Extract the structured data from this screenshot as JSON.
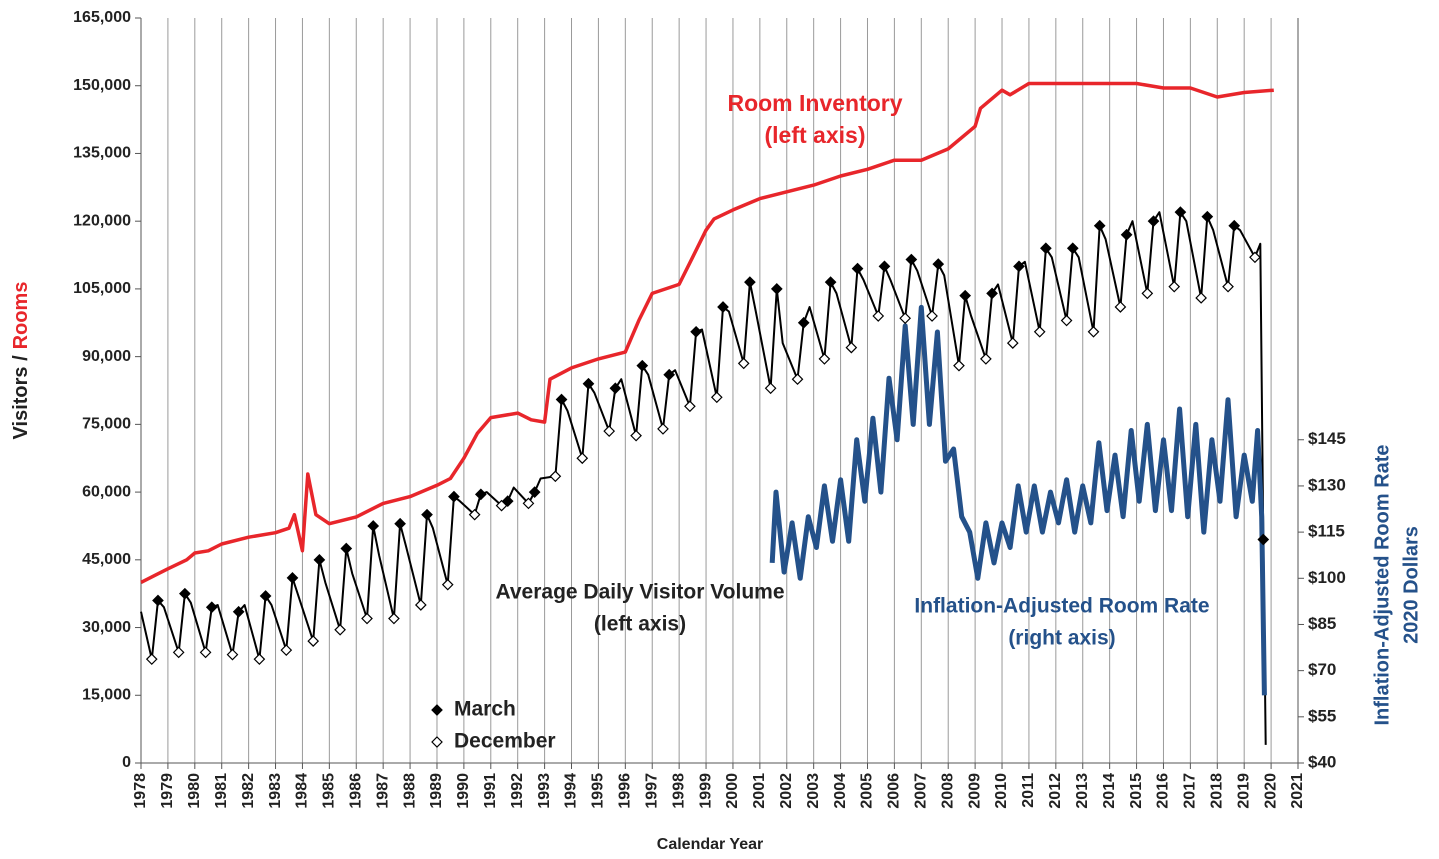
{
  "chart_data": {
    "type": "line",
    "x_label": "Calendar Year",
    "y_label_parts": [
      {
        "text": "Visitors /",
        "color": "#222222"
      },
      {
        "text": "Rooms",
        "color": "#e8262b"
      }
    ],
    "y2_label": [
      "Inflation-Adjusted Room Rate",
      "2020 Dollars"
    ],
    "y2_label_color": "#24518a",
    "annotations": [
      {
        "lines": [
          "Room Inventory",
          "(left axis)"
        ],
        "color": "#e8262b"
      },
      {
        "lines": [
          "Average Daily Visitor Volume",
          "(left axis)"
        ],
        "color": "#222222"
      },
      {
        "lines": [
          "Inflation-Adjusted Room Rate",
          "(right axis)"
        ],
        "color": "#24518a"
      }
    ],
    "xlim": [
      1978,
      2021
    ],
    "xticks": [
      1978,
      1979,
      1980,
      1981,
      1982,
      1983,
      1984,
      1985,
      1986,
      1987,
      1988,
      1989,
      1990,
      1991,
      1992,
      1993,
      1994,
      1995,
      1996,
      1997,
      1998,
      1999,
      2000,
      2001,
      2002,
      2003,
      2004,
      2005,
      2006,
      2007,
      2008,
      2009,
      2010,
      2011,
      2012,
      2013,
      2014,
      2015,
      2016,
      2017,
      2018,
      2019,
      2020,
      2021
    ],
    "ylim": [
      0,
      165000
    ],
    "yticks": [
      {
        "value": 0,
        "label": "0"
      },
      {
        "value": 15000,
        "label": "15,000"
      },
      {
        "value": 30000,
        "label": "30,000"
      },
      {
        "value": 45000,
        "label": "45,000"
      },
      {
        "value": 60000,
        "label": "60,000"
      },
      {
        "value": 75000,
        "label": "75,000"
      },
      {
        "value": 90000,
        "label": "90,000"
      },
      {
        "value": 105000,
        "label": "105,000"
      },
      {
        "value": 120000,
        "label": "120,000"
      },
      {
        "value": 135000,
        "label": "135,000"
      },
      {
        "value": 150000,
        "label": "150,000"
      },
      {
        "value": 165000,
        "label": "165,000"
      }
    ],
    "y2lim": [
      40,
      282
    ],
    "y2ticks": [
      {
        "value": 40,
        "label": "$40"
      },
      {
        "value": 55,
        "label": "$55"
      },
      {
        "value": 70,
        "label": "$70"
      },
      {
        "value": 85,
        "label": "$85"
      },
      {
        "value": 100,
        "label": "$100"
      },
      {
        "value": 115,
        "label": "$115"
      },
      {
        "value": 130,
        "label": "$130"
      },
      {
        "value": 145,
        "label": "$145"
      }
    ],
    "grid": "x",
    "series": [
      {
        "style": "line",
        "color": "#e8262b",
        "width": 3.5,
        "x": [
          1978,
          1978.5,
          1979,
          1979.7,
          1980,
          1980.5,
          1981,
          1982,
          1983,
          1983.5,
          1983.7,
          1984,
          1984.2,
          1984.5,
          1985,
          1986,
          1987,
          1988,
          1989,
          1989.5,
          1990,
          1990.5,
          1991,
          1992,
          1992.5,
          1993,
          1993.2,
          1994,
          1995,
          1996,
          1996.5,
          1997,
          1998,
          1998.5,
          1999,
          1999.3,
          2000,
          2001,
          2002,
          2003,
          2004,
          2005,
          2006,
          2007,
          2008,
          2009,
          2009.2,
          2010,
          2010.3,
          2011,
          2012,
          2013,
          2014,
          2015,
          2016,
          2017,
          2018,
          2019,
          2020.1
        ],
        "values": [
          40000,
          41500,
          43000,
          45000,
          46500,
          47000,
          48500,
          50000,
          51000,
          52000,
          55000,
          47000,
          64000,
          55000,
          53000,
          54500,
          57500,
          59000,
          61500,
          63000,
          67500,
          73000,
          76500,
          77500,
          76000,
          75500,
          85000,
          87500,
          89500,
          91000,
          98000,
          104000,
          106000,
          112000,
          118000,
          120500,
          122500,
          125000,
          126500,
          128000,
          130000,
          131500,
          133500,
          133500,
          136000,
          141000,
          145000,
          149000,
          148000,
          150500,
          150500,
          150500,
          150500,
          150500,
          149500,
          149500,
          147500,
          148500,
          149000
        ]
      },
      {
        "style": "line",
        "color": "#000000",
        "width": 2,
        "x": [
          1978,
          1978.4,
          1978.63,
          1978.85,
          1979.4,
          1979.63,
          1979.85,
          1980.4,
          1980.63,
          1980.85,
          1981.4,
          1981.63,
          1981.85,
          1982.4,
          1982.63,
          1982.85,
          1983.4,
          1983.63,
          1983.85,
          1984.4,
          1984.63,
          1984.85,
          1985.4,
          1985.63,
          1985.85,
          1986.4,
          1986.63,
          1986.85,
          1987.4,
          1987.63,
          1987.85,
          1988.4,
          1988.63,
          1988.85,
          1989.4,
          1989.63,
          1989.85,
          1990.4,
          1990.63,
          1990.85,
          1991.4,
          1991.63,
          1991.85,
          1992.4,
          1992.63,
          1992.85,
          1993.4,
          1993.63,
          1993.85,
          1994.4,
          1994.63,
          1994.85,
          1995.4,
          1995.63,
          1995.85,
          1996.4,
          1996.63,
          1996.85,
          1997.4,
          1997.63,
          1997.85,
          1998.4,
          1998.63,
          1998.85,
          1999.4,
          1999.63,
          1999.85,
          2000.4,
          2000.63,
          2000.85,
          2001.4,
          2001.63,
          2001.85,
          2002.4,
          2002.63,
          2002.85,
          2003.4,
          2003.63,
          2003.85,
          2004.4,
          2004.63,
          2004.85,
          2005.4,
          2005.63,
          2005.85,
          2006.4,
          2006.63,
          2006.85,
          2007.4,
          2007.63,
          2007.85,
          2008.4,
          2008.63,
          2008.85,
          2009.4,
          2009.63,
          2009.85,
          2010.4,
          2010.63,
          2010.85,
          2011.4,
          2011.63,
          2011.85,
          2012.4,
          2012.63,
          2012.85,
          2013.4,
          2013.63,
          2013.85,
          2014.4,
          2014.63,
          2014.85,
          2015.4,
          2015.63,
          2015.85,
          2016.4,
          2016.63,
          2016.85,
          2017.4,
          2017.63,
          2017.85,
          2018.4,
          2018.63,
          2018.85,
          2019.4,
          2019.6,
          2019.71,
          2019.8
        ],
        "values": [
          33500,
          23000,
          36000,
          34500,
          24500,
          37500,
          35500,
          24500,
          34500,
          35000,
          24000,
          33500,
          35000,
          23000,
          37000,
          35000,
          25000,
          41000,
          37000,
          27000,
          45000,
          40000,
          29500,
          47500,
          42000,
          32000,
          52500,
          46000,
          32000,
          53000,
          48000,
          35000,
          55000,
          52000,
          39500,
          59000,
          58000,
          55000,
          59500,
          60000,
          57000,
          58000,
          61000,
          57500,
          60000,
          63000,
          63500,
          80500,
          78000,
          67500,
          84000,
          82000,
          73500,
          83000,
          85000,
          72500,
          88000,
          86000,
          74000,
          86000,
          87000,
          79000,
          95500,
          96000,
          81000,
          101000,
          100000,
          88500,
          106500,
          100000,
          83000,
          105000,
          93000,
          85000,
          97500,
          101000,
          89500,
          106500,
          104000,
          92000,
          109500,
          107000,
          99000,
          110000,
          107000,
          98500,
          111500,
          109000,
          99000,
          110500,
          108000,
          88000,
          103500,
          99000,
          89500,
          104000,
          106000,
          93000,
          110000,
          111000,
          95500,
          114000,
          112000,
          98000,
          114000,
          112000,
          95500,
          119000,
          116000,
          101000,
          117000,
          120000,
          104000,
          120000,
          122000,
          105500,
          122000,
          120000,
          103000,
          121000,
          118000,
          105500,
          119000,
          118000,
          112000,
          115000,
          49500,
          4000
        ]
      },
      {
        "style": "line",
        "axis": "y2",
        "color": "#24518a",
        "width": 5,
        "x": [
          2001.46,
          2001.6,
          2001.9,
          2002.2,
          2002.5,
          2002.8,
          2003.1,
          2003.4,
          2003.7,
          2004.0,
          2004.3,
          2004.6,
          2004.9,
          2005.2,
          2005.5,
          2005.8,
          2006.1,
          2006.4,
          2006.7,
          2007.0,
          2007.3,
          2007.6,
          2007.9,
          2008.2,
          2008.5,
          2008.8,
          2009.1,
          2009.4,
          2009.7,
          2010.0,
          2010.3,
          2010.6,
          2010.9,
          2011.2,
          2011.5,
          2011.8,
          2012.1,
          2012.4,
          2012.7,
          2013.0,
          2013.3,
          2013.6,
          2013.9,
          2014.2,
          2014.5,
          2014.8,
          2015.1,
          2015.4,
          2015.7,
          2016.0,
          2016.3,
          2016.6,
          2016.9,
          2017.2,
          2017.5,
          2017.8,
          2018.1,
          2018.4,
          2018.7,
          2019.0,
          2019.3,
          2019.5,
          2019.65,
          2019.75
        ],
        "values": [
          105,
          128,
          102,
          118,
          100,
          120,
          110,
          130,
          112,
          132,
          112,
          145,
          125,
          152,
          128,
          165,
          145,
          182,
          150,
          188,
          150,
          180,
          138,
          142,
          120,
          115,
          100,
          118,
          105,
          118,
          110,
          130,
          115,
          130,
          115,
          128,
          118,
          132,
          115,
          130,
          118,
          144,
          122,
          140,
          120,
          148,
          125,
          150,
          122,
          145,
          122,
          155,
          120,
          150,
          115,
          145,
          125,
          158,
          120,
          140,
          125,
          148,
          120,
          62
        ]
      },
      {
        "style": "markers",
        "name": "March",
        "marker": "filled",
        "color": "#000000",
        "x": [
          1978.63,
          1979.63,
          1980.63,
          1981.63,
          1982.63,
          1983.63,
          1984.63,
          1985.63,
          1986.63,
          1987.63,
          1988.63,
          1989.63,
          1990.63,
          1991.63,
          1992.63,
          1993.63,
          1994.63,
          1995.63,
          1996.63,
          1997.63,
          1998.63,
          1999.63,
          2000.63,
          2001.63,
          2002.63,
          2003.63,
          2004.63,
          2005.63,
          2006.63,
          2007.63,
          2008.63,
          2009.63,
          2010.63,
          2011.63,
          2012.63,
          2013.63,
          2014.63,
          2015.63,
          2016.63,
          2017.63,
          2018.63,
          2019.71
        ],
        "values": [
          36000,
          37500,
          34500,
          33500,
          37000,
          41000,
          45000,
          47500,
          52500,
          53000,
          55000,
          59000,
          59500,
          58000,
          60000,
          80500,
          84000,
          83000,
          88000,
          86000,
          95500,
          101000,
          106500,
          105000,
          97500,
          106500,
          109500,
          110000,
          111500,
          110500,
          103500,
          104000,
          110000,
          114000,
          114000,
          119000,
          117000,
          120000,
          122000,
          121000,
          119000,
          49500
        ]
      },
      {
        "style": "markers",
        "name": "December",
        "marker": "open",
        "color": "#000000",
        "x": [
          1978.4,
          1979.4,
          1980.4,
          1981.4,
          1982.4,
          1983.4,
          1984.4,
          1985.4,
          1986.4,
          1987.4,
          1988.4,
          1989.4,
          1990.4,
          1991.4,
          1992.4,
          1993.4,
          1994.4,
          1995.4,
          1996.4,
          1997.4,
          1998.4,
          1999.4,
          2000.4,
          2001.4,
          2002.4,
          2003.4,
          2004.4,
          2005.4,
          2006.4,
          2007.4,
          2008.4,
          2009.4,
          2010.4,
          2011.4,
          2012.4,
          2013.4,
          2014.4,
          2015.4,
          2016.4,
          2017.4,
          2018.4,
          2019.4
        ],
        "values": [
          23000,
          24500,
          24500,
          24000,
          23000,
          25000,
          27000,
          29500,
          32000,
          32000,
          35000,
          39500,
          55000,
          57000,
          57500,
          63500,
          67500,
          73500,
          72500,
          74000,
          79000,
          81000,
          88500,
          83000,
          85000,
          89500,
          92000,
          99000,
          98500,
          99000,
          88000,
          89500,
          93000,
          95500,
          98000,
          95500,
          101000,
          104000,
          105500,
          103000,
          105500,
          112000
        ]
      }
    ]
  }
}
